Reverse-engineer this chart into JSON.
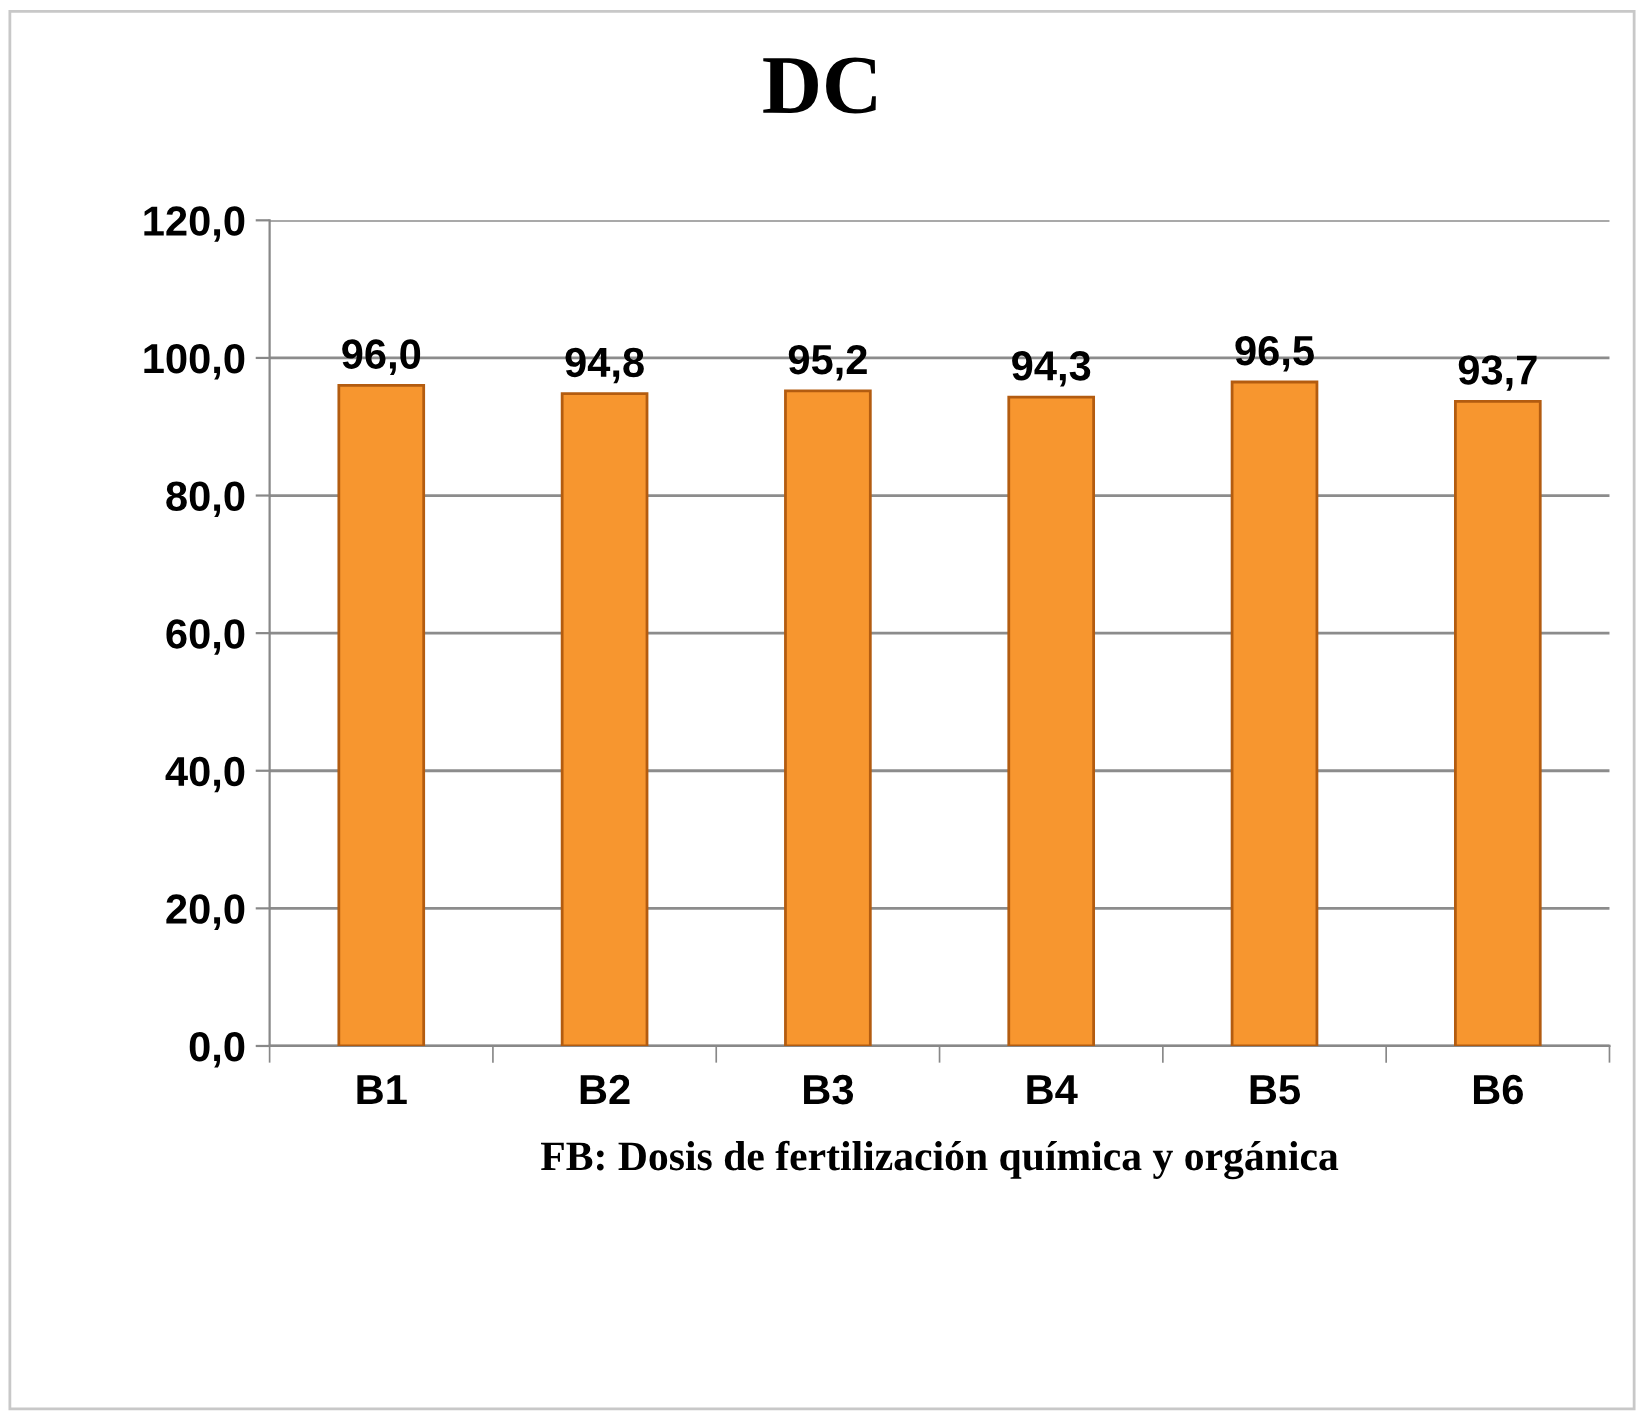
{
  "chart_data": {
    "type": "bar",
    "title": "DC",
    "xlabel": "FB: Dosis de fertilización química y orgánica",
    "categories": [
      "B1",
      "B2",
      "B3",
      "B4",
      "B5",
      "B6"
    ],
    "values": [
      96.0,
      94.8,
      95.2,
      94.3,
      96.5,
      93.7
    ],
    "value_labels": [
      "96,0",
      "94,8",
      "95,2",
      "94,3",
      "96,5",
      "93,7"
    ],
    "color": "#f7962f",
    "ylim": [
      0,
      120
    ],
    "yticks": [
      {
        "value": 0,
        "label": "0,0"
      },
      {
        "value": 20,
        "label": "20,0"
      },
      {
        "value": 40,
        "label": "40,0"
      },
      {
        "value": 60,
        "label": "60,0"
      },
      {
        "value": 80,
        "label": "80,0"
      },
      {
        "value": 100,
        "label": "100,0"
      },
      {
        "value": 120,
        "label": "120,0"
      }
    ],
    "grid": "y"
  }
}
